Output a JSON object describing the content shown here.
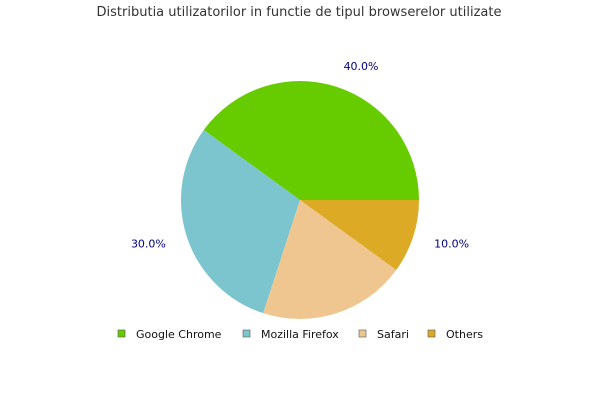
{
  "chart_data": {
    "type": "pie",
    "title": "Distributia utilizatorilor in functie de tipul browserelor utilizate",
    "slices": [
      {
        "name": "Google Chrome",
        "value": 40.0,
        "label": "40.0%",
        "color": "#66cc00"
      },
      {
        "name": "Mozilla Firefox",
        "value": 30.0,
        "label": "30.0%",
        "color": "#7cc5ce"
      },
      {
        "name": "Safari",
        "value": 20.0,
        "label": "",
        "color": "#f0c690"
      },
      {
        "name": "Others",
        "value": 10.0,
        "label": "10.0%",
        "color": "#dcaa25"
      }
    ],
    "legend_position": "bottom",
    "label_color": "#000080"
  }
}
